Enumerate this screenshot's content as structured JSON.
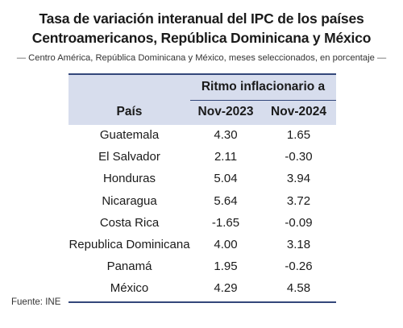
{
  "title_line1": "Tasa de variación interanual del IPC de los países",
  "title_line2": "Centroamericanos, República Dominicana y México",
  "subtitle": "Centro América, República Dominicana y México, meses seleccionados, en porcentaje",
  "source": "Fuente: INE",
  "chart_data": {
    "type": "table",
    "group_header": "Ritmo inflacionario a",
    "columns": [
      "País",
      "Nov-2023",
      "Nov-2024"
    ],
    "rows": [
      {
        "country": "Guatemala",
        "nov2023": "4.30",
        "nov2024": "1.65"
      },
      {
        "country": "El Salvador",
        "nov2023": "2.11",
        "nov2024": "-0.30"
      },
      {
        "country": "Honduras",
        "nov2023": "5.04",
        "nov2024": "3.94"
      },
      {
        "country": "Nicaragua",
        "nov2023": "5.64",
        "nov2024": "3.72"
      },
      {
        "country": "Costa Rica",
        "nov2023": "-1.65",
        "nov2024": "-0.09"
      },
      {
        "country": "Republica Dominicana",
        "nov2023": "4.00",
        "nov2024": "3.18"
      },
      {
        "country": "Panamá",
        "nov2023": "1.95",
        "nov2024": "-0.26"
      },
      {
        "country": "México",
        "nov2023": "4.29",
        "nov2024": "4.58"
      }
    ]
  },
  "colors": {
    "header_band": "#d7dded",
    "rule": "#33477a"
  }
}
